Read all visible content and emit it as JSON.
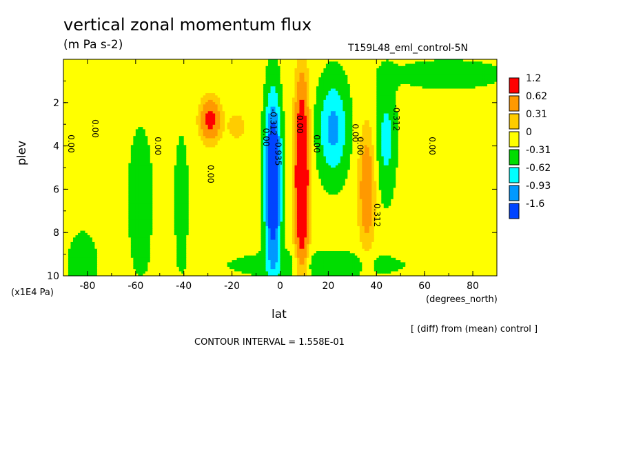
{
  "chart_data": {
    "type": "contour",
    "title": "vertical zonal momentum flux",
    "units": "(m Pa s-2)",
    "run_name": "T159L48_eml_control-5N",
    "ylabel": "plev",
    "yunit": "(x1E4 Pa)",
    "xlabel": "lat",
    "xunit": "(degrees_north)",
    "diff_note": "[ (diff) from (mean) control ]",
    "contour_interval": "CONTOUR INTERVAL = 1.558E-01",
    "xlim": [
      -90,
      90
    ],
    "ylim": [
      10,
      0
    ],
    "x_ticks": [
      -80,
      -60,
      -40,
      -20,
      0,
      20,
      40,
      60,
      80
    ],
    "y_ticks": [
      2,
      4,
      6,
      8,
      10
    ],
    "colorbar": {
      "labels": [
        "1.2",
        "0.62",
        "0.31",
        "0",
        "-0.31",
        "-0.62",
        "-0.93",
        "-1.6"
      ],
      "colors": [
        "#ff0000",
        "#ff9900",
        "#ffcc00",
        "#ffff00",
        "#00dd00",
        "#00ffff",
        "#0099ff",
        "#0044ff"
      ]
    },
    "levels": [
      -1.6,
      -0.93,
      -0.62,
      -0.31,
      0,
      0.31,
      0.62,
      1.2
    ],
    "contour_labels": [
      {
        "text": "0.00",
        "lat": -88,
        "plev": 3.9
      },
      {
        "text": "0.00",
        "lat": -78,
        "plev": 3.2
      },
      {
        "text": "0.00",
        "lat": -52,
        "plev": 4.0
      },
      {
        "text": "0.00",
        "lat": -30,
        "plev": 5.3
      },
      {
        "text": "0.00",
        "lat": -7,
        "plev": 3.6
      },
      {
        "text": "-0.312",
        "lat": -4,
        "plev": 2.9
      },
      {
        "text": "-0.935",
        "lat": -2,
        "plev": 4.3
      },
      {
        "text": "0.00",
        "lat": 7,
        "plev": 3.0
      },
      {
        "text": "0.00",
        "lat": 14,
        "plev": 3.9
      },
      {
        "text": "0.00",
        "lat": 30,
        "plev": 3.4
      },
      {
        "text": "0.00",
        "lat": 32,
        "plev": 4.0
      },
      {
        "text": "-0.312",
        "lat": 47,
        "plev": 2.7
      },
      {
        "text": "0.312",
        "lat": 39,
        "plev": 7.2
      },
      {
        "text": "0.00",
        "lat": 62,
        "plev": 4.0
      }
    ]
  }
}
